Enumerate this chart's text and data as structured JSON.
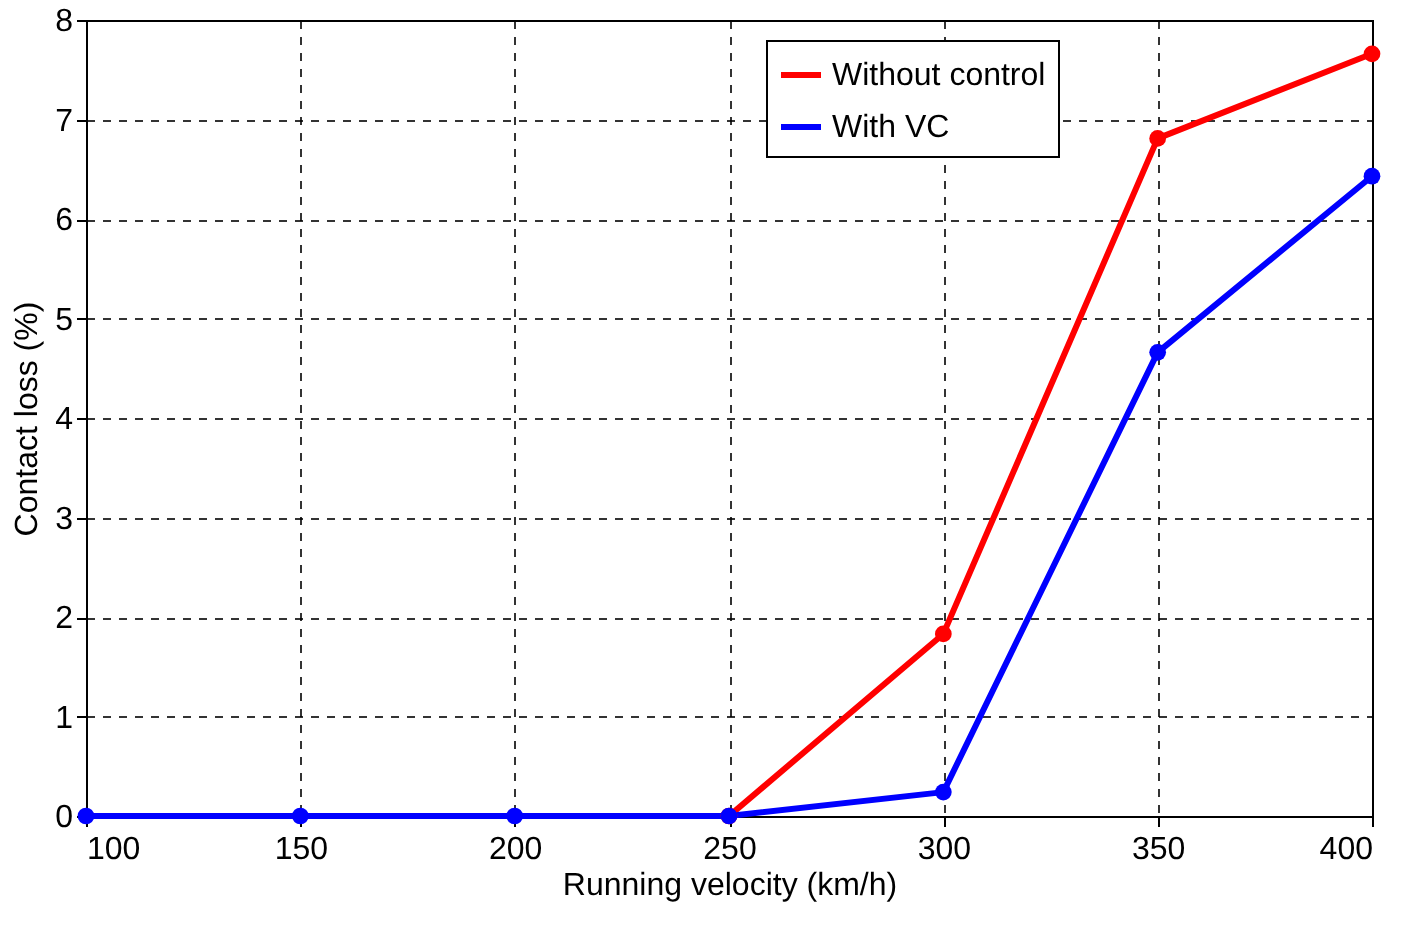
{
  "chart_data": {
    "type": "line",
    "xlabel": "Running velocity (km/h)",
    "ylabel": "Contact loss (%)",
    "x": [
      100,
      150,
      200,
      250,
      300,
      350,
      400
    ],
    "series": [
      {
        "name": "Without control",
        "color": "#ff0000",
        "values": [
          null,
          null,
          null,
          0,
          1.83,
          6.81,
          7.66
        ]
      },
      {
        "name": "With VC",
        "color": "#0000ff",
        "values": [
          0,
          0,
          0,
          0,
          0.24,
          4.66,
          6.43
        ]
      }
    ],
    "xlim": [
      100,
      400
    ],
    "xticks": [
      100,
      150,
      200,
      250,
      300,
      350,
      400
    ],
    "ylim": [
      0,
      8
    ],
    "yticks": [
      0,
      1,
      2,
      3,
      4,
      5,
      6,
      7,
      8
    ],
    "grid": true,
    "legend": "top right",
    "marker": "circle",
    "line_style": "solid"
  }
}
